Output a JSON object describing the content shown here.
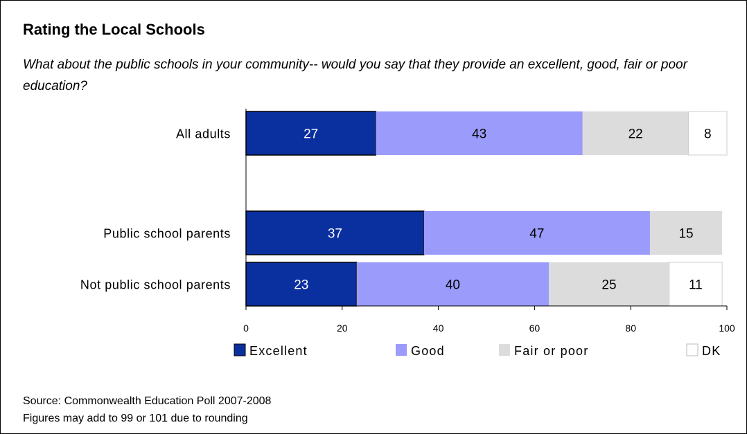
{
  "header": {
    "title": "Rating the Local Schools",
    "subtitle": "What about the public schools in your community-- would you say that they provide an excellent, good, fair or poor education?"
  },
  "footer": {
    "source": "Source: Commonwealth Education Poll 2007-2008",
    "note": "Figures may add to 99 or 101 due to rounding"
  },
  "colors": {
    "Excellent": "#0a2f9e",
    "Good": "#9b9bfb",
    "Fair or poor": "#dcdcdc",
    "DK": "#ffffff"
  },
  "chart_data": {
    "type": "bar",
    "orientation": "horizontal",
    "stacked": true,
    "categories": [
      "All adults",
      "Public school parents",
      "Not public school parents"
    ],
    "series": [
      {
        "name": "Excellent",
        "values": [
          27,
          37,
          23
        ]
      },
      {
        "name": "Good",
        "values": [
          43,
          47,
          40
        ]
      },
      {
        "name": "Fair or poor",
        "values": [
          22,
          15,
          25
        ]
      },
      {
        "name": "DK",
        "values": [
          8,
          null,
          11
        ]
      }
    ],
    "xlim": [
      0,
      100
    ],
    "xticks": [
      0,
      20,
      40,
      60,
      80,
      100
    ],
    "legend_position": "bottom",
    "grid": false
  }
}
